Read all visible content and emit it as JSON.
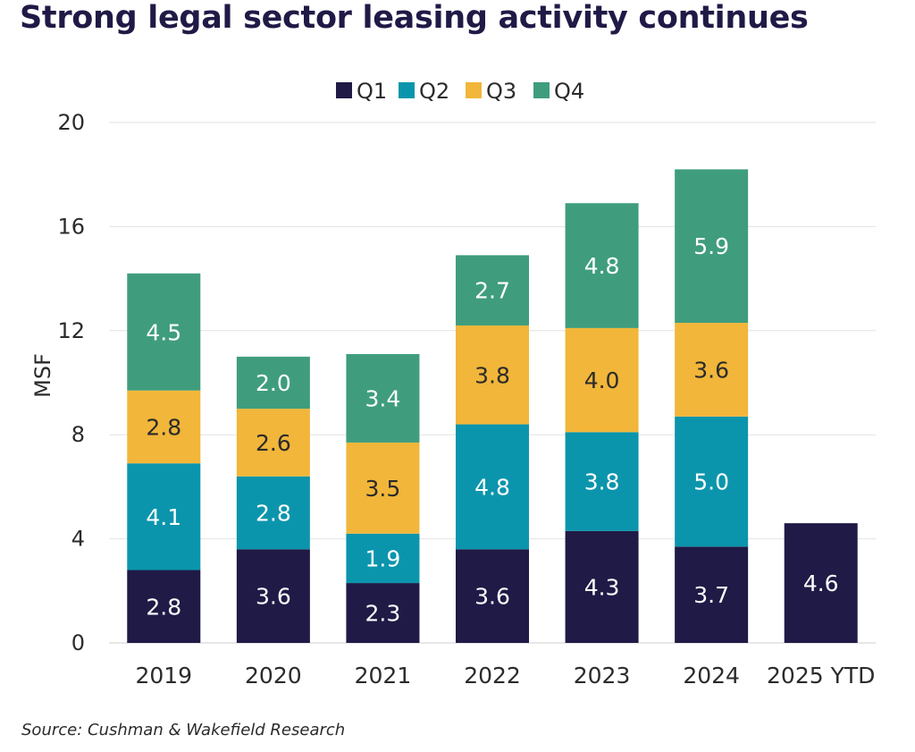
{
  "title": "Strong legal sector leasing activity continues",
  "source": "Source: Cushman & Wakefield Research",
  "colors": {
    "Q1": "#1f1a46",
    "Q2": "#0b95ac",
    "Q3": "#f1b63a",
    "Q4": "#3f9d7d",
    "grid": "#e2e2e2",
    "axis_text": "#2b2b2b"
  },
  "chart_data": {
    "type": "bar",
    "stacked": true,
    "title": "Strong legal sector leasing activity continues",
    "xlabel": "",
    "ylabel": "MSF",
    "ylim": [
      0,
      20
    ],
    "yticks": [
      0,
      4,
      8,
      12,
      16,
      20
    ],
    "grid": true,
    "legend_position": "top-center",
    "categories": [
      "2019",
      "2020",
      "2021",
      "2022",
      "2023",
      "2024",
      "2025 YTD"
    ],
    "series": [
      {
        "name": "Q1",
        "values": [
          2.8,
          3.6,
          2.3,
          3.6,
          4.3,
          3.7,
          4.6
        ]
      },
      {
        "name": "Q2",
        "values": [
          4.1,
          2.8,
          1.9,
          4.8,
          3.8,
          5.0,
          null
        ]
      },
      {
        "name": "Q3",
        "values": [
          2.8,
          2.6,
          3.5,
          3.8,
          4.0,
          3.6,
          null
        ]
      },
      {
        "name": "Q4",
        "values": [
          4.5,
          2.0,
          3.4,
          2.7,
          4.8,
          5.9,
          null
        ]
      }
    ]
  }
}
